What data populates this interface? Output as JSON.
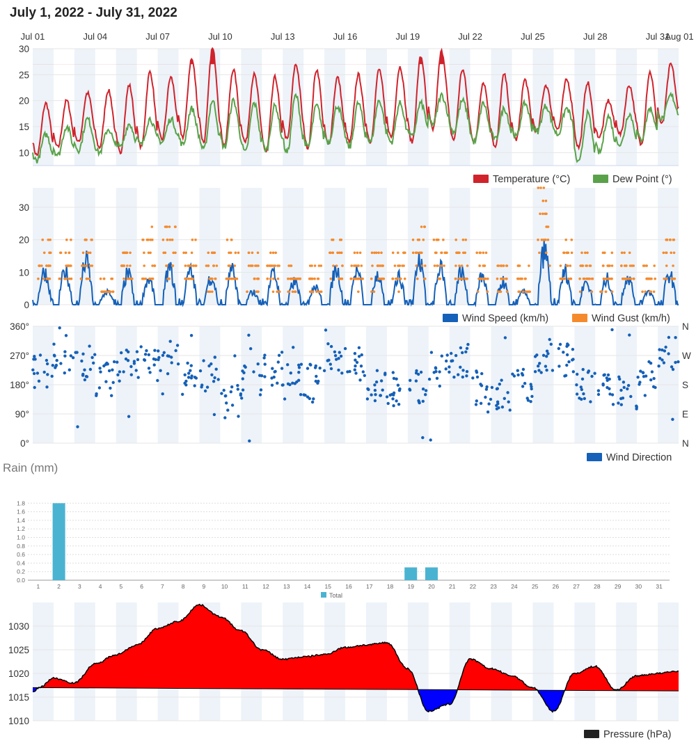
{
  "page_title": "July 1, 2022 - July 31, 2022",
  "colors": {
    "temperature": "#d0232c",
    "dew_point": "#5aa24a",
    "wind_speed": "#1560b8",
    "wind_gust": "#f58a2c",
    "wind_direction": "#1560b8",
    "rain": "#4bb3d2",
    "pressure_above": "#ff0000",
    "pressure_below": "#0000ff",
    "pressure_legend": "#222222",
    "day_band": "#edf3f9"
  },
  "date_axis": [
    "Jul 01",
    "Jul 04",
    "Jul 07",
    "Jul 10",
    "Jul 13",
    "Jul 16",
    "Jul 19",
    "Jul 22",
    "Jul 25",
    "Jul 28",
    "Jul 31",
    "Aug 01"
  ],
  "legends": {
    "temperature": "Temperature (°C)",
    "dew_point": "Dew Point (°)",
    "wind_speed": "Wind Speed (km/h)",
    "wind_gust": "Wind Gust (km/h)",
    "wind_direction": "Wind Direction",
    "rain_total": "Total",
    "pressure": "Pressure (hPa)"
  },
  "rain_title": "Rain (mm)",
  "chart_data": [
    {
      "type": "line",
      "x_range": [
        "2022-07-01",
        "2022-08-01"
      ],
      "y_ticks": [
        10,
        15,
        20,
        25,
        30
      ],
      "ylim": [
        7.5,
        30
      ],
      "fill_above": 27,
      "series": [
        {
          "name": "Temperature (°C)",
          "daily_low": [
            9.5,
            11,
            12,
            11,
            10,
            11,
            12.5,
            13,
            12,
            11.5,
            12,
            10,
            12.5,
            11,
            11.5,
            12,
            12,
            13,
            12,
            14.5,
            12.5,
            12,
            11,
            12.5,
            14,
            14.5,
            11,
            13,
            13.5,
            11.5,
            15.5
          ],
          "daily_high": [
            19.5,
            20,
            21.5,
            22,
            23,
            25.5,
            24.5,
            28,
            30,
            26,
            25,
            24.5,
            27,
            26,
            24.5,
            25,
            26,
            26.5,
            28.5,
            29.5,
            26,
            23.5,
            25,
            24,
            23,
            24,
            23.5,
            20,
            23,
            25.5,
            27
          ]
        },
        {
          "name": "Dew Point (°)",
          "daily_low": [
            8.5,
            9.5,
            10.5,
            10,
            11,
            11.5,
            12,
            11.5,
            10.5,
            11,
            10,
            10.5,
            10,
            11,
            12,
            11,
            12,
            12,
            13,
            15.5,
            14,
            12,
            12.5,
            13,
            14,
            13.5,
            8,
            10,
            11.5,
            12.5,
            16.5
          ],
          "daily_high": [
            13.5,
            15,
            16.5,
            14.5,
            15.5,
            16.5,
            16.5,
            18.5,
            20,
            20,
            19.5,
            19,
            21,
            19,
            19,
            19.5,
            20,
            19.5,
            19.5,
            21,
            20,
            19.5,
            18.5,
            19.5,
            19,
            18.5,
            17.5,
            17,
            17.5,
            18.5,
            21
          ]
        }
      ]
    },
    {
      "type": "line",
      "x_range": [
        "2022-07-01",
        "2022-08-01"
      ],
      "y_ticks": [
        0,
        10,
        20,
        30
      ],
      "ylim": [
        0,
        36
      ],
      "series": [
        {
          "name": "Wind Speed (km/h)",
          "daily_max": [
            13,
            13,
            17,
            5,
            12,
            10,
            14,
            13,
            11,
            13,
            5,
            12,
            9,
            8,
            14,
            13,
            12,
            11,
            17,
            14,
            13,
            11,
            9,
            5,
            21,
            13,
            9,
            10,
            11,
            5,
            12
          ]
        },
        {
          "name": "Wind Gust (km/h)",
          "daily_max": [
            20,
            20,
            24,
            8,
            18,
            24,
            24,
            20,
            16,
            20,
            16,
            16,
            12,
            12,
            20,
            16,
            16,
            16,
            24,
            20,
            20,
            16,
            12,
            12,
            36,
            20,
            16,
            16,
            16,
            12,
            20
          ]
        }
      ]
    },
    {
      "type": "scatter",
      "x_range": [
        "2022-07-01",
        "2022-08-01"
      ],
      "y_ticks": [
        0,
        90,
        180,
        270,
        360
      ],
      "ylim": [
        0,
        360
      ],
      "y2_ticks": [
        "N",
        "E",
        "S",
        "W",
        "N"
      ],
      "series": [
        {
          "name": "Wind Direction",
          "daily_mean": [
            225,
            270,
            250,
            200,
            240,
            245,
            260,
            200,
            210,
            130,
            190,
            230,
            190,
            190,
            260,
            245,
            185,
            145,
            170,
            230,
            255,
            170,
            140,
            180,
            270,
            255,
            175,
            160,
            150,
            200,
            275
          ]
        }
      ]
    },
    {
      "type": "bar",
      "title": "Rain (mm)",
      "categories": [
        "1",
        "2",
        "3",
        "4",
        "5",
        "6",
        "7",
        "8",
        "9",
        "10",
        "11",
        "12",
        "13",
        "14",
        "15",
        "16",
        "17",
        "18",
        "19",
        "20",
        "21",
        "22",
        "23",
        "24",
        "25",
        "26",
        "27",
        "28",
        "29",
        "30",
        "31"
      ],
      "series": [
        {
          "name": "Total",
          "values": [
            0,
            1.8,
            0,
            0,
            0,
            0,
            0,
            0,
            0,
            0,
            0,
            0,
            0,
            0,
            0,
            0,
            0,
            0,
            0.3,
            0.3,
            0,
            0,
            0,
            0,
            0,
            0,
            0,
            0,
            0,
            0,
            0
          ]
        }
      ],
      "y_ticks": [
        0,
        0.2,
        0.4,
        0.6,
        0.8,
        1.0,
        1.2,
        1.4,
        1.6,
        1.8
      ],
      "ylim": [
        0,
        2.0
      ]
    },
    {
      "type": "area",
      "x_range": [
        "2022-07-01",
        "2022-08-01"
      ],
      "y_ticks": [
        1010,
        1015,
        1020,
        1025,
        1030
      ],
      "ylim": [
        1010,
        1035
      ],
      "series": [
        {
          "name": "Pressure (hPa)",
          "x_day": [
            0,
            0.3,
            1,
            2,
            3,
            4,
            5,
            6,
            7,
            8,
            9,
            10,
            11,
            12,
            13,
            14,
            15,
            16,
            17,
            18,
            19,
            20,
            21,
            22,
            23,
            24,
            25,
            26,
            27,
            28,
            29,
            30,
            31
          ],
          "values": [
            1016,
            1017,
            1019,
            1018,
            1022,
            1024,
            1026,
            1029.5,
            1031,
            1034.5,
            1032,
            1029,
            1025,
            1023,
            1023.5,
            1024,
            1025.5,
            1026,
            1026.5,
            1021,
            1012,
            1013.5,
            1023,
            1021,
            1019.5,
            1017,
            1012,
            1020,
            1021.5,
            1016.5,
            1019.5,
            1020,
            1020.5
          ],
          "baseline": [
            1017,
            1016.3
          ]
        }
      ]
    }
  ]
}
